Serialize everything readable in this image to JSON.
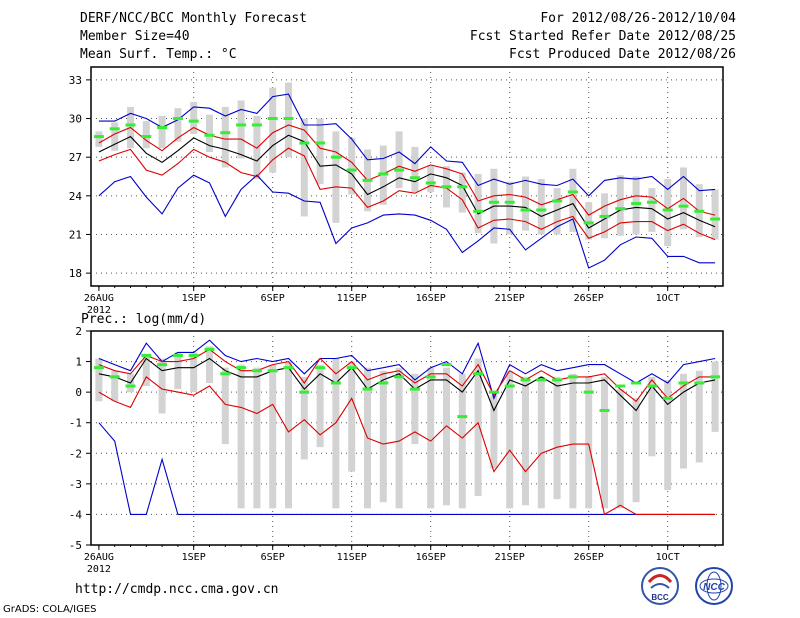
{
  "header": {
    "title": "DERF/NCC/BCC Monthly Forecast",
    "member_size": "Member Size=40",
    "variable": "Mean Surf. Temp.: °C",
    "period": "For 2012/08/26-2012/10/04",
    "start_date": "Fcst Started Refer Date 2012/08/25",
    "produced_date": "Fcst Produced Date 2012/08/26"
  },
  "footer": {
    "url": "http://cmdp.ncc.cma.gov.cn",
    "grads": "GrADS: COLA/IGES",
    "logo_bcc": "BCC",
    "logo_ncc": "NCC"
  },
  "colors": {
    "box": "#d3d3d3",
    "median": "#33ee33",
    "mean": "#000000",
    "sigma": "#dd0000",
    "extreme": "#0000cc",
    "grid": "#555555"
  },
  "chart_data": [
    {
      "type": "boxplot",
      "title": "Mean Surf. Temp.: °C",
      "x_tick_labels": [
        "26AUG",
        "1SEP",
        "6SEP",
        "11SEP",
        "16SEP",
        "21SEP",
        "26SEP",
        "1OCT"
      ],
      "x_tick_days": [
        1,
        7,
        12,
        17,
        22,
        27,
        32,
        37
      ],
      "x_year_label": "2012",
      "days": 40,
      "ylim": [
        17,
        34
      ],
      "yticks": [
        18,
        21,
        24,
        27,
        30,
        33
      ],
      "mean": [
        27.4,
        28.0,
        28.6,
        27.3,
        26.6,
        27.5,
        28.5,
        27.9,
        27.6,
        27.2,
        26.7,
        27.9,
        28.7,
        28.2,
        26.3,
        26.4,
        25.7,
        24.1,
        24.7,
        25.4,
        25.1,
        25.7,
        25.4,
        24.8,
        22.6,
        23.2,
        23.2,
        23.1,
        22.4,
        22.9,
        23.4,
        21.5,
        22.2,
        22.9,
        23.1,
        23.0,
        22.2,
        22.7,
        22.1,
        21.6
      ],
      "sigma_upper": [
        28.1,
        28.8,
        29.3,
        28.3,
        27.5,
        28.5,
        29.3,
        28.7,
        28.4,
        28.4,
        27.7,
        28.9,
        29.5,
        29.1,
        27.7,
        27.4,
        26.6,
        25.2,
        25.7,
        26.3,
        25.9,
        26.4,
        26.1,
        25.7,
        23.6,
        24.0,
        24.1,
        23.9,
        23.3,
        23.7,
        24.1,
        22.5,
        23.2,
        23.7,
        24.0,
        23.9,
        23.0,
        23.8,
        22.8,
        22.5
      ],
      "sigma_lower": [
        26.7,
        27.2,
        27.6,
        26.0,
        25.6,
        26.5,
        27.6,
        27.0,
        26.6,
        25.8,
        25.5,
        26.8,
        27.7,
        27.1,
        24.5,
        24.7,
        24.6,
        23.1,
        23.6,
        24.4,
        24.2,
        24.8,
        24.6,
        23.7,
        21.5,
        22.1,
        22.2,
        22.0,
        21.4,
        22.0,
        22.4,
        20.7,
        21.2,
        21.9,
        22.0,
        22.0,
        21.3,
        21.8,
        21.1,
        20.6
      ],
      "max": [
        29.8,
        29.8,
        30.4,
        30.0,
        29.3,
        29.9,
        30.9,
        30.8,
        30.2,
        30.7,
        30.4,
        31.7,
        31.9,
        29.5,
        29.5,
        29.6,
        28.4,
        26.8,
        26.9,
        27.4,
        26.5,
        27.8,
        26.7,
        26.6,
        24.8,
        25.3,
        24.9,
        25.2,
        24.9,
        24.8,
        25.3,
        24.0,
        25.2,
        25.4,
        25.3,
        25.5,
        24.5,
        25.5,
        24.4,
        24.5
      ],
      "min": [
        24.0,
        25.1,
        25.5,
        23.9,
        22.6,
        24.6,
        25.6,
        25.0,
        22.4,
        24.5,
        25.6,
        24.3,
        24.2,
        23.6,
        23.5,
        20.3,
        21.5,
        21.9,
        22.5,
        22.6,
        22.5,
        22.1,
        21.4,
        19.6,
        20.5,
        21.5,
        21.4,
        19.8,
        20.7,
        21.6,
        22.2,
        18.4,
        19.0,
        20.2,
        20.8,
        20.7,
        19.3,
        19.3,
        18.8,
        18.8
      ],
      "box_upper": [
        29.0,
        29.7,
        30.9,
        29.8,
        30.2,
        30.8,
        31.3,
        30.3,
        30.9,
        31.4,
        30.2,
        32.4,
        32.8,
        30.0,
        30.0,
        29.0,
        28.5,
        27.6,
        27.9,
        29.0,
        27.8,
        26.4,
        26.3,
        25.8,
        25.7,
        26.1,
        25.1,
        25.5,
        25.3,
        24.6,
        26.1,
        23.5,
        24.2,
        25.6,
        25.5,
        24.6,
        25.3,
        26.2,
        24.9,
        24.5
      ],
      "box_lower": [
        27.8,
        27.5,
        27.7,
        27.7,
        27.7,
        28.2,
        28.8,
        27.4,
        26.2,
        26.9,
        25.3,
        25.8,
        27.0,
        22.4,
        24.9,
        21.9,
        24.1,
        22.8,
        23.3,
        24.6,
        24.3,
        24.3,
        23.1,
        22.7,
        21.1,
        20.3,
        21.0,
        21.3,
        21.0,
        21.0,
        21.2,
        20.6,
        20.7,
        20.9,
        21.0,
        21.2,
        20.1,
        21.4,
        20.8,
        20.6
      ],
      "median": [
        28.6,
        29.2,
        29.5,
        28.6,
        29.3,
        30.0,
        29.8,
        28.7,
        28.9,
        29.5,
        29.5,
        30.0,
        30.0,
        28.1,
        28.1,
        27.0,
        26.0,
        25.2,
        25.7,
        26.0,
        25.4,
        25.0,
        24.7,
        24.7,
        22.8,
        23.5,
        23.5,
        22.9,
        22.9,
        23.6,
        24.3,
        21.9,
        22.4,
        23.0,
        23.4,
        23.5,
        22.9,
        23.2,
        22.8,
        22.2
      ]
    },
    {
      "type": "boxplot",
      "title": "Prec.: log(mm/d)",
      "x_tick_labels": [
        "26AUG",
        "1SEP",
        "6SEP",
        "11SEP",
        "16SEP",
        "21SEP",
        "26SEP",
        "1OCT"
      ],
      "x_tick_days": [
        1,
        7,
        12,
        17,
        22,
        27,
        32,
        37
      ],
      "x_year_label": "2012",
      "days": 40,
      "ylim": [
        -5,
        2
      ],
      "yticks": [
        -5,
        -4,
        -3,
        -2,
        -1,
        0,
        1,
        2
      ],
      "mean": [
        0.6,
        0.5,
        0.3,
        1.1,
        0.7,
        0.8,
        0.8,
        1.1,
        0.7,
        0.5,
        0.5,
        0.7,
        0.8,
        0.1,
        0.6,
        0.3,
        0.8,
        0.1,
        0.4,
        0.6,
        0.1,
        0.4,
        0.4,
        0.0,
        0.7,
        -0.6,
        0.4,
        0.2,
        0.5,
        0.2,
        0.3,
        0.3,
        0.4,
        -0.1,
        -0.6,
        0.2,
        -0.4,
        -0.0,
        0.3,
        0.4
      ],
      "sigma_upper": [
        0.9,
        0.7,
        0.6,
        1.2,
        1.0,
        1.0,
        1.1,
        1.4,
        1.0,
        0.7,
        0.7,
        0.9,
        1.0,
        0.3,
        1.1,
        0.6,
        1.0,
        0.4,
        0.6,
        0.7,
        0.3,
        0.6,
        0.6,
        0.2,
        0.9,
        -0.1,
        0.7,
        0.4,
        0.7,
        0.4,
        0.5,
        0.5,
        0.6,
        0.1,
        -0.3,
        0.4,
        -0.2,
        0.2,
        0.5,
        0.5
      ],
      "sigma_lower": [
        -0.0,
        -0.3,
        -0.5,
        0.5,
        0.1,
        0.0,
        -0.1,
        0.2,
        -0.4,
        -0.5,
        -0.7,
        -0.4,
        -1.3,
        -0.9,
        -1.4,
        -1.0,
        -0.2,
        -1.5,
        -1.7,
        -1.6,
        -1.3,
        -1.6,
        -1.1,
        -1.5,
        -1.0,
        -2.6,
        -1.9,
        -2.6,
        -2.0,
        -1.8,
        -1.7,
        -1.7,
        -4.0,
        -3.7,
        -4.0,
        -4.0,
        -4.0,
        -4.0,
        -4.0,
        -4.0
      ],
      "max": [
        1.1,
        0.9,
        0.7,
        1.6,
        1.0,
        1.3,
        1.3,
        1.7,
        1.2,
        1.0,
        1.1,
        1.0,
        1.1,
        0.6,
        1.1,
        1.1,
        1.2,
        0.7,
        0.8,
        0.9,
        0.4,
        0.8,
        1.0,
        0.6,
        1.6,
        -0.2,
        0.9,
        0.6,
        0.9,
        0.7,
        0.8,
        0.9,
        0.9,
        0.6,
        0.3,
        0.6,
        0.3,
        0.9,
        1.0,
        1.1
      ],
      "min": [
        -1.0,
        -1.6,
        -4.0,
        -4.0,
        -2.2,
        -4.0,
        -4.0,
        -4.0,
        -4.0,
        -4.0,
        -4.0,
        -4.0,
        -4.0,
        -4.0,
        -4.0,
        -4.0,
        -4.0,
        -4.0,
        -4.0,
        -4.0,
        -4.0,
        -4.0,
        -4.0,
        -4.0,
        -4.0,
        -4.0,
        -4.0,
        -4.0,
        -4.0,
        -4.0,
        -4.0,
        -4.0,
        -4.0,
        -4.0,
        -4.0,
        -4.0,
        -4.0,
        -4.0,
        -4.0,
        -4.0
      ],
      "box_upper": [
        1.1,
        0.7,
        0.6,
        1.2,
        1.1,
        1.3,
        1.3,
        1.5,
        0.8,
        0.9,
        0.8,
        0.9,
        1.0,
        0.5,
        0.9,
        1.1,
        1.0,
        0.8,
        0.7,
        0.8,
        0.6,
        0.8,
        0.8,
        0.6,
        1.1,
        -0.1,
        0.7,
        0.5,
        0.5,
        0.5,
        0.6,
        0.5,
        0.5,
        0.1,
        -0.2,
        0.5,
        0.4,
        0.6,
        0.7,
        1.0
      ],
      "box_lower": [
        -0.3,
        -0.3,
        0.0,
        0.2,
        -0.7,
        0.1,
        0.0,
        0.3,
        -1.7,
        -3.8,
        -3.8,
        -3.8,
        -3.8,
        -2.2,
        -1.8,
        -3.8,
        -2.6,
        -3.8,
        -3.6,
        -3.8,
        -1.7,
        -3.8,
        -3.7,
        -3.8,
        -3.4,
        -2.5,
        -3.8,
        -3.7,
        -3.8,
        -3.5,
        -3.8,
        -3.8,
        -3.8,
        -3.8,
        -3.6,
        -2.1,
        -3.2,
        -2.5,
        -2.3,
        -1.3
      ],
      "median": [
        0.8,
        0.5,
        0.2,
        1.2,
        0.9,
        1.2,
        1.2,
        1.4,
        0.6,
        0.8,
        0.7,
        0.7,
        0.8,
        -0.0,
        0.8,
        0.3,
        0.8,
        0.1,
        0.3,
        0.5,
        0.1,
        0.5,
        0.9,
        -0.8,
        0.6,
        0.0,
        0.2,
        0.4,
        0.4,
        0.4,
        0.5,
        0.0,
        -0.6,
        0.2,
        0.3,
        0.2,
        -0.2,
        0.3,
        0.3,
        0.5
      ]
    }
  ]
}
